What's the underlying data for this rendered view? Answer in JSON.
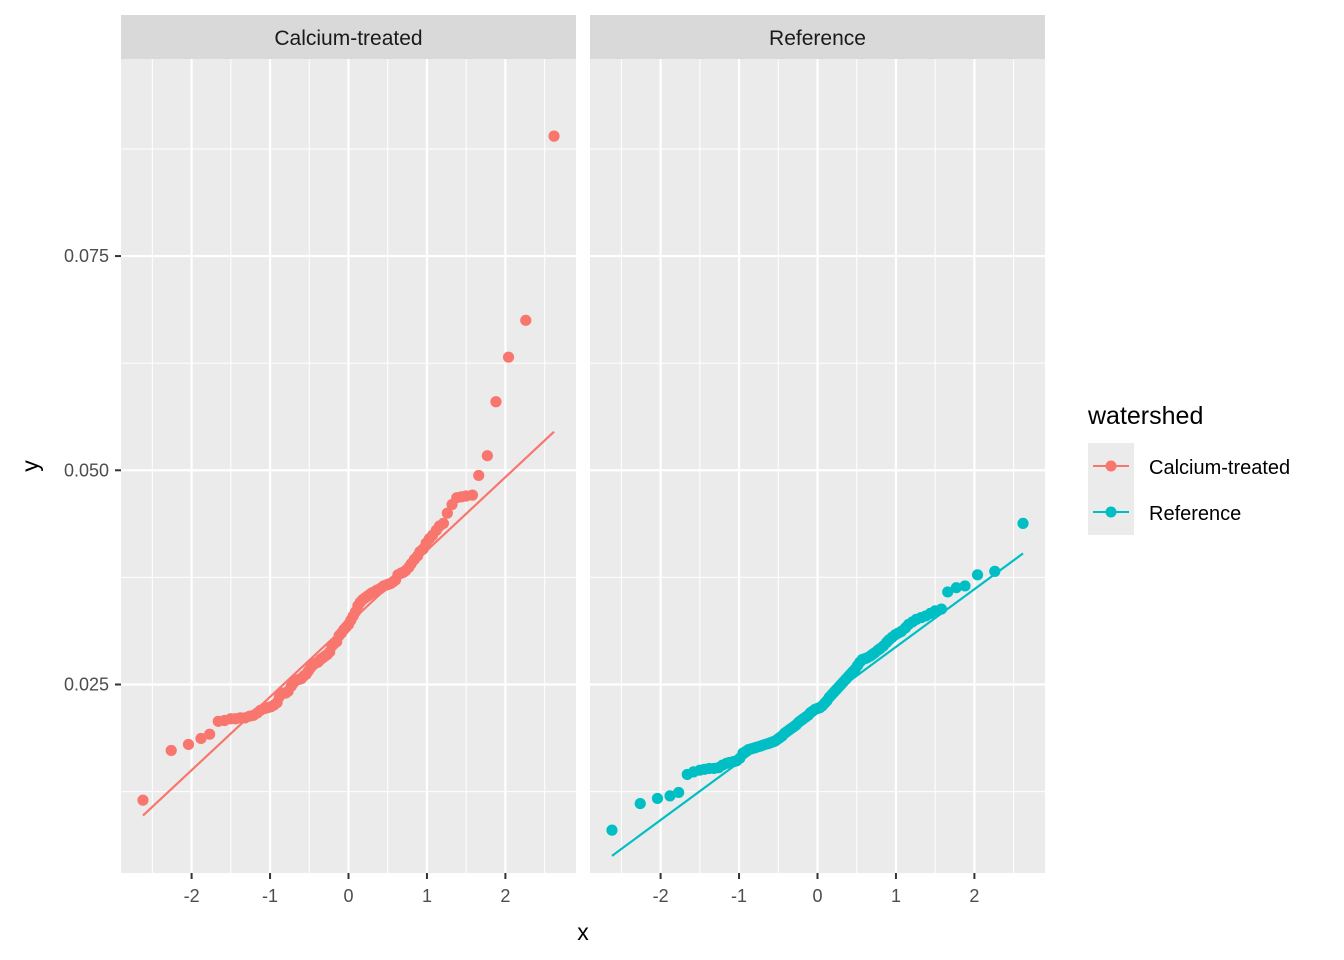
{
  "chart_data": {
    "type": "scatter",
    "title": "",
    "xlabel": "x",
    "ylabel": "y",
    "xlim": [
      -2.9,
      2.9
    ],
    "ylim": [
      0.003,
      0.098
    ],
    "x_ticks": [
      -2,
      -1,
      0,
      1,
      2
    ],
    "x_tick_labels": [
      "-2",
      "-1",
      "0",
      "1",
      "2"
    ],
    "y_ticks": [
      0.025,
      0.05,
      0.075
    ],
    "y_tick_labels": [
      "0.025",
      "0.050",
      "0.075"
    ],
    "grid": true,
    "legend": {
      "title": "watershed",
      "position": "right"
    },
    "panels": [
      {
        "strip_label": "Calcium-treated",
        "series_name": "Calcium-treated",
        "color": "#F8766D",
        "qq_line": {
          "x": [
            -2.62,
            2.62
          ],
          "y": [
            0.0097,
            0.0545
          ]
        },
        "points": [
          [
            -2.62,
            0.0115
          ],
          [
            -2.26,
            0.0173
          ],
          [
            -2.04,
            0.018
          ],
          [
            -1.88,
            0.0187
          ],
          [
            -1.77,
            0.0192
          ],
          [
            -1.66,
            0.0207
          ],
          [
            -1.58,
            0.0208
          ],
          [
            -1.5,
            0.021
          ],
          [
            -1.44,
            0.021
          ],
          [
            -1.38,
            0.0211
          ],
          [
            -1.32,
            0.0211
          ],
          [
            -1.26,
            0.0213
          ],
          [
            -1.21,
            0.0214
          ],
          [
            -1.16,
            0.0217
          ],
          [
            -1.12,
            0.022
          ],
          [
            -1.07,
            0.0222
          ],
          [
            -1.03,
            0.0223
          ],
          [
            -0.99,
            0.0224
          ],
          [
            -0.95,
            0.0226
          ],
          [
            -0.91,
            0.0229
          ],
          [
            -0.88,
            0.0236
          ],
          [
            -0.84,
            0.024
          ],
          [
            -0.8,
            0.024
          ],
          [
            -0.77,
            0.0242
          ],
          [
            -0.73,
            0.0248
          ],
          [
            -0.7,
            0.0252
          ],
          [
            -0.67,
            0.0255
          ],
          [
            -0.63,
            0.0256
          ],
          [
            -0.6,
            0.0257
          ],
          [
            -0.57,
            0.026
          ],
          [
            -0.54,
            0.0262
          ],
          [
            -0.51,
            0.0266
          ],
          [
            -0.48,
            0.027
          ],
          [
            -0.45,
            0.0273
          ],
          [
            -0.42,
            0.0275
          ],
          [
            -0.39,
            0.0276
          ],
          [
            -0.36,
            0.0279
          ],
          [
            -0.33,
            0.0281
          ],
          [
            -0.3,
            0.0283
          ],
          [
            -0.27,
            0.0285
          ],
          [
            -0.24,
            0.0288
          ],
          [
            -0.21,
            0.0295
          ],
          [
            -0.18,
            0.0298
          ],
          [
            -0.15,
            0.03
          ],
          [
            -0.12,
            0.0307
          ],
          [
            -0.09,
            0.031
          ],
          [
            -0.06,
            0.0314
          ],
          [
            -0.03,
            0.0317
          ],
          [
            0.0,
            0.032
          ],
          [
            0.03,
            0.0325
          ],
          [
            0.06,
            0.033
          ],
          [
            0.09,
            0.0335
          ],
          [
            0.12,
            0.0342
          ],
          [
            0.15,
            0.0346
          ],
          [
            0.18,
            0.0349
          ],
          [
            0.21,
            0.0351
          ],
          [
            0.24,
            0.0353
          ],
          [
            0.27,
            0.0355
          ],
          [
            0.3,
            0.0357
          ],
          [
            0.33,
            0.0358
          ],
          [
            0.36,
            0.036
          ],
          [
            0.39,
            0.0361
          ],
          [
            0.42,
            0.0363
          ],
          [
            0.45,
            0.0365
          ],
          [
            0.48,
            0.0366
          ],
          [
            0.51,
            0.0367
          ],
          [
            0.54,
            0.0368
          ],
          [
            0.57,
            0.037
          ],
          [
            0.6,
            0.0372
          ],
          [
            0.63,
            0.0378
          ],
          [
            0.67,
            0.038
          ],
          [
            0.7,
            0.0381
          ],
          [
            0.73,
            0.0383
          ],
          [
            0.77,
            0.0387
          ],
          [
            0.8,
            0.0391
          ],
          [
            0.84,
            0.0396
          ],
          [
            0.88,
            0.04
          ],
          [
            0.91,
            0.0405
          ],
          [
            0.95,
            0.0408
          ],
          [
            0.99,
            0.0415
          ],
          [
            1.03,
            0.042
          ],
          [
            1.07,
            0.0424
          ],
          [
            1.12,
            0.043
          ],
          [
            1.16,
            0.0435
          ],
          [
            1.21,
            0.0438
          ],
          [
            1.26,
            0.045
          ],
          [
            1.32,
            0.046
          ],
          [
            1.38,
            0.0468
          ],
          [
            1.44,
            0.0469
          ],
          [
            1.5,
            0.047
          ],
          [
            1.58,
            0.0471
          ],
          [
            1.66,
            0.0494
          ],
          [
            1.77,
            0.0517
          ],
          [
            1.88,
            0.058
          ],
          [
            2.04,
            0.0632
          ],
          [
            2.26,
            0.0675
          ],
          [
            2.62,
            0.089
          ]
        ]
      },
      {
        "strip_label": "Reference",
        "series_name": "Reference",
        "color": "#00BFC4",
        "qq_line": {
          "x": [
            -2.62,
            2.62
          ],
          "y": [
            0.005,
            0.0403
          ]
        },
        "points": [
          [
            -2.62,
            0.008
          ],
          [
            -2.26,
            0.0111
          ],
          [
            -2.04,
            0.0117
          ],
          [
            -1.88,
            0.012
          ],
          [
            -1.77,
            0.0124
          ],
          [
            -1.66,
            0.0145
          ],
          [
            -1.58,
            0.0148
          ],
          [
            -1.5,
            0.015
          ],
          [
            -1.44,
            0.0151
          ],
          [
            -1.38,
            0.0152
          ],
          [
            -1.32,
            0.0152
          ],
          [
            -1.26,
            0.0153
          ],
          [
            -1.21,
            0.0156
          ],
          [
            -1.16,
            0.0158
          ],
          [
            -1.12,
            0.0159
          ],
          [
            -1.07,
            0.016
          ],
          [
            -1.03,
            0.0161
          ],
          [
            -0.99,
            0.0164
          ],
          [
            -0.95,
            0.017
          ],
          [
            -0.91,
            0.0172
          ],
          [
            -0.88,
            0.0174
          ],
          [
            -0.84,
            0.0175
          ],
          [
            -0.8,
            0.0176
          ],
          [
            -0.77,
            0.0177
          ],
          [
            -0.73,
            0.0178
          ],
          [
            -0.7,
            0.0179
          ],
          [
            -0.67,
            0.018
          ],
          [
            -0.63,
            0.0181
          ],
          [
            -0.6,
            0.0182
          ],
          [
            -0.57,
            0.0183
          ],
          [
            -0.54,
            0.0184
          ],
          [
            -0.51,
            0.0186
          ],
          [
            -0.48,
            0.0188
          ],
          [
            -0.45,
            0.019
          ],
          [
            -0.42,
            0.0193
          ],
          [
            -0.39,
            0.0195
          ],
          [
            -0.36,
            0.0197
          ],
          [
            -0.33,
            0.0199
          ],
          [
            -0.3,
            0.0201
          ],
          [
            -0.27,
            0.0203
          ],
          [
            -0.24,
            0.0206
          ],
          [
            -0.21,
            0.0208
          ],
          [
            -0.18,
            0.021
          ],
          [
            -0.15,
            0.0212
          ],
          [
            -0.12,
            0.0214
          ],
          [
            -0.09,
            0.0217
          ],
          [
            -0.06,
            0.0219
          ],
          [
            -0.03,
            0.0221
          ],
          [
            0.0,
            0.0222
          ],
          [
            0.03,
            0.0223
          ],
          [
            0.06,
            0.0225
          ],
          [
            0.09,
            0.0228
          ],
          [
            0.12,
            0.0231
          ],
          [
            0.15,
            0.0235
          ],
          [
            0.18,
            0.0238
          ],
          [
            0.21,
            0.0241
          ],
          [
            0.24,
            0.0244
          ],
          [
            0.27,
            0.0247
          ],
          [
            0.3,
            0.025
          ],
          [
            0.33,
            0.0253
          ],
          [
            0.36,
            0.0256
          ],
          [
            0.39,
            0.0259
          ],
          [
            0.42,
            0.0262
          ],
          [
            0.45,
            0.0265
          ],
          [
            0.48,
            0.0268
          ],
          [
            0.51,
            0.0272
          ],
          [
            0.54,
            0.0276
          ],
          [
            0.57,
            0.0279
          ],
          [
            0.6,
            0.028
          ],
          [
            0.63,
            0.0281
          ],
          [
            0.67,
            0.0283
          ],
          [
            0.7,
            0.0285
          ],
          [
            0.73,
            0.0287
          ],
          [
            0.77,
            0.029
          ],
          [
            0.8,
            0.0292
          ],
          [
            0.84,
            0.0295
          ],
          [
            0.88,
            0.0299
          ],
          [
            0.91,
            0.0302
          ],
          [
            0.95,
            0.0305
          ],
          [
            0.99,
            0.0308
          ],
          [
            1.03,
            0.031
          ],
          [
            1.07,
            0.0312
          ],
          [
            1.12,
            0.0316
          ],
          [
            1.16,
            0.032
          ],
          [
            1.21,
            0.0323
          ],
          [
            1.26,
            0.0326
          ],
          [
            1.32,
            0.0328
          ],
          [
            1.38,
            0.033
          ],
          [
            1.44,
            0.0333
          ],
          [
            1.5,
            0.0336
          ],
          [
            1.58,
            0.0338
          ],
          [
            1.66,
            0.0358
          ],
          [
            1.77,
            0.0363
          ],
          [
            1.88,
            0.0365
          ],
          [
            2.04,
            0.0378
          ],
          [
            2.26,
            0.0382
          ],
          [
            2.62,
            0.0438
          ]
        ]
      }
    ]
  }
}
